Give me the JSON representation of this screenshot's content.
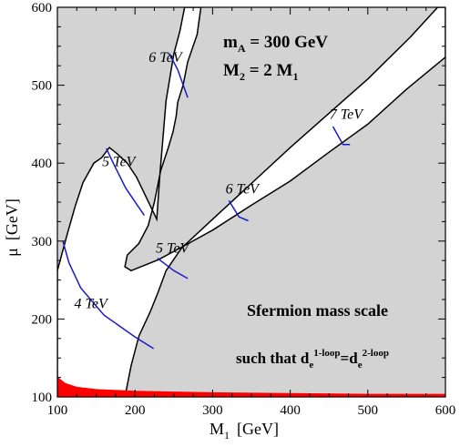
{
  "chart_data": {
    "type": "contour",
    "xlabel": {
      "main": "M",
      "sub": "1",
      "unit": "[GeV]"
    },
    "ylabel": {
      "main": "μ",
      "unit": "[GeV]"
    },
    "xlim": [
      100,
      600
    ],
    "ylim": [
      100,
      600
    ],
    "xticks": [
      100,
      200,
      300,
      400,
      500,
      600
    ],
    "yticks": [
      100,
      200,
      300,
      400,
      500,
      600
    ],
    "colors": {
      "excluded": "#d3d3d3",
      "boundary": "#000000",
      "contour": "#1a1acc",
      "red_band": "#ff0000"
    },
    "params": [
      {
        "main": "m",
        "sub": "A",
        "rest": " = 300 GeV"
      },
      {
        "main": "M",
        "sub": "2",
        "rest": " = 2 M",
        "sub2": "1"
      }
    ],
    "description": {
      "line1": "Sfermion mass scale",
      "line2": {
        "prefix": "such that d",
        "sub1": "e",
        "sup1": "1-loop",
        "mid": "=d",
        "sub2": "e",
        "sup2": "2-loop"
      }
    },
    "allowed_region_upper": [
      [
        100,
        262
      ],
      [
        113,
        310
      ],
      [
        123,
        345
      ],
      [
        133,
        375
      ],
      [
        147,
        400
      ],
      [
        157,
        407
      ],
      [
        167,
        420
      ],
      [
        177,
        412
      ],
      [
        190,
        400
      ],
      [
        202,
        382
      ],
      [
        215,
        355
      ],
      [
        228,
        328
      ],
      [
        232,
        385
      ],
      [
        240,
        480
      ],
      [
        250,
        540
      ],
      [
        258,
        570
      ],
      [
        264,
        600
      ],
      [
        285,
        600
      ],
      [
        280,
        565
      ],
      [
        268,
        530
      ],
      [
        262,
        500
      ],
      [
        255,
        478
      ],
      [
        253,
        460
      ],
      [
        249,
        440
      ],
      [
        243,
        420
      ],
      [
        233,
        390
      ],
      [
        225,
        350
      ],
      [
        217,
        320
      ],
      [
        205,
        297
      ],
      [
        190,
        282
      ],
      [
        187,
        267
      ],
      [
        195,
        262
      ],
      [
        210,
        268
      ],
      [
        230,
        276
      ],
      [
        260,
        292
      ],
      [
        300,
        314
      ],
      [
        350,
        346
      ],
      [
        400,
        377
      ],
      [
        450,
        414
      ],
      [
        500,
        450
      ],
      [
        550,
        495
      ],
      [
        600,
        536
      ],
      [
        600,
        600
      ],
      [
        590,
        600
      ],
      [
        555,
        562
      ],
      [
        500,
        508
      ],
      [
        450,
        464
      ],
      [
        400,
        420
      ],
      [
        350,
        374
      ],
      [
        300,
        328
      ],
      [
        260,
        291
      ],
      [
        240,
        262
      ],
      [
        230,
        235
      ],
      [
        220,
        210
      ],
      [
        205,
        178
      ],
      [
        195,
        140
      ],
      [
        190,
        115
      ],
      [
        187,
        100
      ],
      [
        100,
        100
      ]
    ],
    "red_band": [
      [
        100,
        126
      ],
      [
        110,
        118
      ],
      [
        125,
        113
      ],
      [
        150,
        110
      ],
      [
        200,
        108
      ],
      [
        300,
        106
      ],
      [
        400,
        105
      ],
      [
        500,
        104
      ],
      [
        600,
        104
      ],
      [
        600,
        100
      ],
      [
        100,
        100
      ]
    ],
    "contours": [
      {
        "label": "4 TeV",
        "points": [
          [
            107,
            300
          ],
          [
            115,
            272
          ],
          [
            130,
            240
          ],
          [
            160,
            205
          ],
          [
            200,
            177
          ],
          [
            224,
            162
          ]
        ],
        "label_at": [
          143,
          214
        ]
      },
      {
        "label": "5 TeV",
        "points": [
          [
            163,
            419
          ],
          [
            173,
            398
          ],
          [
            188,
            368
          ],
          [
            203,
            346
          ],
          [
            212,
            333
          ]
        ],
        "label_at": [
          179,
          396
        ]
      },
      {
        "label": "6 TeV",
        "points": [
          [
            244,
            541
          ],
          [
            255,
            520
          ],
          [
            268,
            484
          ]
        ],
        "label_at": [
          239,
          530
        ]
      },
      {
        "label": "5 TeV",
        "points": [
          [
            229,
            278
          ],
          [
            250,
            262
          ],
          [
            268,
            252
          ]
        ],
        "label_at": [
          248,
          285
        ]
      },
      {
        "label": "6 TeV",
        "points": [
          [
            321,
            352
          ],
          [
            334,
            331
          ],
          [
            346,
            326
          ]
        ],
        "label_at": [
          338,
          361
        ]
      },
      {
        "label": "7 TeV",
        "points": [
          [
            455,
            447
          ],
          [
            468,
            424
          ],
          [
            477,
            424
          ]
        ],
        "label_at": [
          472,
          457
        ]
      }
    ]
  }
}
